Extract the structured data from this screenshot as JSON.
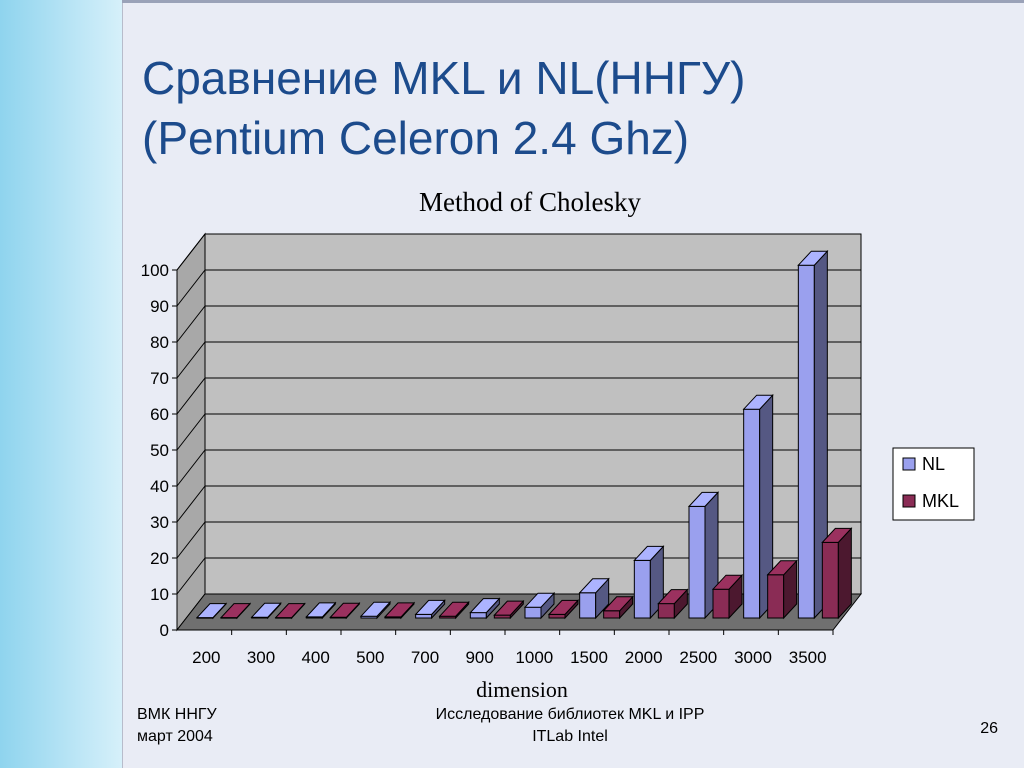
{
  "slide": {
    "title_line1": "Сравнение MKL и NL(ННГУ)",
    "title_line2": "(Pentium Celeron 2.4 Ghz)",
    "footer_left_line1": "ВМК ННГУ",
    "footer_left_line2": "март 2004",
    "footer_center_line1": "Исследование библиотек MKL и IPP",
    "footer_center_line2": "ITLab  Intel",
    "page_number": "26"
  },
  "colors": {
    "title": "#1c4b8c",
    "sidebar": "#8fd4ee",
    "nl_bar": "#9aa0ee",
    "mkl_bar": "#8a2c55",
    "plot_back": "#c0c0c0",
    "floor": "#707070"
  },
  "chart_data": {
    "type": "bar",
    "title": "Method of Cholesky",
    "xlabel": "dimension",
    "ylabel": "",
    "categories": [
      "200",
      "300",
      "400",
      "500",
      "700",
      "900",
      "1000",
      "1500",
      "2000",
      "2500",
      "3000",
      "3500"
    ],
    "series": [
      {
        "name": "NL",
        "values": [
          0.1,
          0.2,
          0.3,
          0.5,
          1,
          1.5,
          3,
          7,
          16,
          31,
          58,
          98
        ]
      },
      {
        "name": "MKL",
        "values": [
          0.1,
          0.1,
          0.2,
          0.3,
          0.5,
          0.8,
          1,
          2,
          4,
          8,
          12,
          21
        ]
      }
    ],
    "ylim": [
      0,
      100
    ],
    "yticks": [
      0,
      10,
      20,
      30,
      40,
      50,
      60,
      70,
      80,
      90,
      100
    ],
    "grid": true,
    "legend": "right",
    "style": "3d-clustered-column"
  }
}
